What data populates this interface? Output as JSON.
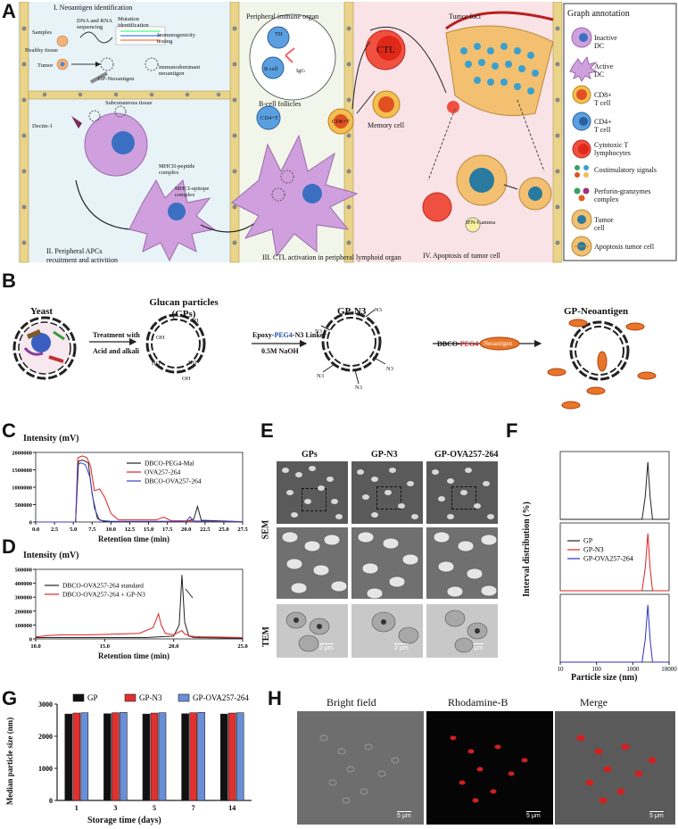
{
  "panel_letters": [
    "A",
    "B",
    "C",
    "D",
    "E",
    "F",
    "G",
    "H"
  ],
  "panelA": {
    "section1": "I. Neoantigen identification",
    "section2_lines": [
      "II. Peripheral APCs",
      "recuitment and activition"
    ],
    "section3": "III. CTL activation in peripheral lymphoid organ",
    "section4": "IV. Apoptosis of  tumor cell",
    "peripheral_organ": "Peripheral immune organ",
    "tumor_foci": "Tumor foci",
    "subcutaneous": "Subcutaneous tissue",
    "labels": {
      "samples": "Samples",
      "healthy": "Healthy tissue",
      "tumor": "Tumor",
      "seq": "DNA and RNA sequencing",
      "mutation": "Mutation identification",
      "immuno": "Immunogenicity testing",
      "immunodominant": "immunodominant neoantigen",
      "gp_neo": "GP-Neoantigen",
      "dectin": "Dectin-1",
      "mhcii": "MHCII-peptide complex",
      "mhci": "MHCI-epitope complex",
      "bcell": "B-cell follicles",
      "bcell_inner": "B cell",
      "th": "TH",
      "igg": "IgG",
      "cd4": "CD4+T",
      "cd8": "CD8+T",
      "ctl": "CTL",
      "memory": "Memory cell",
      "ifn": "IFN-Gamma"
    },
    "legend_title": "Graph annotation",
    "legend": [
      {
        "label": "Inactive DC",
        "icon": "inactive-dc-icon"
      },
      {
        "label": "Active DC",
        "icon": "active-dc-icon"
      },
      {
        "label": "CD8+ T cell",
        "icon": "cd8-cell-icon"
      },
      {
        "label": "CD4+ T cell",
        "icon": "cd4-cell-icon"
      },
      {
        "label": "Cytotoxic T lymphocytes",
        "icon": "ctl-icon"
      },
      {
        "label": "Costimulatory signals",
        "icon": "costim-icon"
      },
      {
        "label": "Perforin-granzymes complex",
        "icon": "perforin-icon"
      },
      {
        "label": "Tumor cell",
        "icon": "tumor-cell-icon"
      },
      {
        "label": "Apoptosis tumor cell",
        "icon": "apoptosis-icon"
      }
    ]
  },
  "panelB": {
    "yeast": "Yeast",
    "glucan_title": [
      "Glucan particles",
      "(GPs)"
    ],
    "gpn3_title": "GP-N3",
    "gpneo_title": "GP-Neoantigen",
    "step1": [
      "Treatment with",
      "Acid and alkali"
    ],
    "step2_a": "Epoxy-",
    "step2_peg": "PEG4",
    "step2_b": "-N3 Linker",
    "step2_c": "0.5M NaOH",
    "step3_a": "DBCO-",
    "step3_peg": "PEG4",
    "step3_neo": "Neoantigen",
    "oh": "OH",
    "ho": "HO",
    "n3": "N3",
    "neo_small": "Neoantigen"
  },
  "panelC": {
    "ylabel": "Intensity (mV)",
    "xlabel": "Retention time (min)"
  },
  "panelD": {
    "ylabel": "Intensity (mV)",
    "xlabel": "Retention time (min)"
  },
  "panelE": {
    "cols": [
      "GPs",
      "GP-N3",
      "GP-OVA257-264"
    ],
    "rows": [
      "SEM",
      "TEM"
    ],
    "scale": "2 μm"
  },
  "panelF": {
    "ylabel": "Interval distribution (%)",
    "xlabel": "Particle size (nm)"
  },
  "panelG": {
    "ylabel": "Median particle size (nm)",
    "xlabel": "Storage time (days)"
  },
  "panelH": {
    "cols": [
      "Bright field",
      "Rhodamine-B",
      "Merge"
    ],
    "scale": "5 μm"
  },
  "chart_data": [
    {
      "type": "line",
      "id": "C",
      "ylabel": "Intensity (mV)",
      "xlabel": "Retention time (min)",
      "xlim": [
        0.0,
        27.5
      ],
      "ylim": [
        0,
        2000000
      ],
      "xticks": [
        0.0,
        2.5,
        5.0,
        7.5,
        10.0,
        12.5,
        15.0,
        17.5,
        20.0,
        22.5,
        25.0,
        27.5
      ],
      "yticks": [
        0,
        500000,
        1000000,
        1500000,
        2000000
      ],
      "series": [
        {
          "name": "DBCO-PEG4-Mal",
          "color": "#222222",
          "x": [
            0,
            5.3,
            5.7,
            6.2,
            7.0,
            7.5,
            8.2,
            9.0,
            10,
            20,
            21,
            21.5,
            22,
            27.5
          ],
          "y": [
            0,
            0,
            1750000,
            1780000,
            1700000,
            800000,
            100000,
            20000,
            10000,
            20000,
            80000,
            450000,
            50000,
            10000
          ]
        },
        {
          "name": "OVA257-264",
          "color": "#e02020",
          "x": [
            0,
            5.3,
            5.6,
            6.2,
            6.8,
            7.3,
            7.8,
            8.5,
            9.2,
            10,
            11,
            16,
            17,
            18,
            27.5
          ],
          "y": [
            0,
            0,
            1850000,
            1900000,
            1850000,
            1600000,
            900000,
            950000,
            700000,
            250000,
            60000,
            60000,
            140000,
            40000,
            10000
          ]
        },
        {
          "name": "DBCO-OVA257-264",
          "color": "#4040c0",
          "x": [
            0,
            5.3,
            5.6,
            6.0,
            6.6,
            7.2,
            7.8,
            8.5,
            10,
            20,
            20.5,
            21,
            27.5
          ],
          "y": [
            0,
            0,
            1650000,
            1700000,
            1650000,
            1300000,
            400000,
            50000,
            20000,
            20000,
            150000,
            30000,
            10000
          ]
        }
      ]
    },
    {
      "type": "line",
      "id": "D",
      "ylabel": "Intensity (mV)",
      "xlabel": "Retention time (min)",
      "xlim": [
        10.0,
        25.0
      ],
      "ylim": [
        0,
        500000
      ],
      "xticks": [
        10.0,
        15.0,
        20.0,
        25.0
      ],
      "yticks": [
        0,
        100000,
        200000,
        300000,
        400000,
        500000
      ],
      "series": [
        {
          "name": "DBCO-OVA257-264 standard",
          "color": "#222222",
          "x": [
            10,
            18,
            19,
            20,
            20.4,
            20.6,
            20.8,
            21.1,
            21.5,
            25
          ],
          "y": [
            10000,
            10000,
            15000,
            20000,
            100000,
            460000,
            120000,
            20000,
            10000,
            5000
          ]
        },
        {
          "name": "DBCO-OVA257-264 + GP-N3",
          "color": "#e02020",
          "x": [
            10,
            11,
            12,
            14,
            16,
            17.5,
            18.5,
            18.9,
            19.1,
            19.4,
            20,
            20.6,
            20.8,
            21.2,
            22,
            25
          ],
          "y": [
            15000,
            25000,
            30000,
            30000,
            35000,
            40000,
            80000,
            180000,
            100000,
            40000,
            30000,
            60000,
            35000,
            20000,
            15000,
            10000
          ]
        }
      ]
    },
    {
      "type": "line",
      "id": "F",
      "xscale": "log",
      "xlim": [
        10,
        10000
      ],
      "xticks": [
        10,
        100,
        1000,
        10000
      ],
      "ylabel": "Interval distribution (%)",
      "xlabel": "Particle size (nm)",
      "series": [
        {
          "name": "GP",
          "color": "#222222",
          "x": [
            10,
            1800,
            2200,
            2600,
            3000,
            3500,
            10000
          ],
          "y": [
            0,
            0,
            15,
            38,
            15,
            0,
            0
          ]
        },
        {
          "name": "GP-N3",
          "color": "#e02020",
          "x": [
            10,
            1800,
            2200,
            2600,
            3000,
            3500,
            10000
          ],
          "y": [
            0,
            0,
            15,
            38,
            15,
            0,
            0
          ]
        },
        {
          "name": "GP-OVA257-264",
          "color": "#3030c0",
          "x": [
            10,
            1800,
            2200,
            2600,
            3000,
            3500,
            10000
          ],
          "y": [
            0,
            0,
            15,
            38,
            15,
            0,
            0
          ]
        }
      ]
    },
    {
      "type": "bar",
      "id": "G",
      "ylabel": "Median particle size (nm)",
      "xlabel": "Storage time (days)",
      "categories": [
        "1",
        "3",
        "5",
        "7",
        "14"
      ],
      "ylim": [
        0,
        3000
      ],
      "yticks": [
        0,
        1000,
        2000,
        3000
      ],
      "legend": "top",
      "series": [
        {
          "name": "GP",
          "color": "#111111",
          "values": [
            2690,
            2700,
            2690,
            2700,
            2690
          ]
        },
        {
          "name": "GP-N3",
          "color": "#e03030",
          "values": [
            2720,
            2730,
            2720,
            2730,
            2720
          ]
        },
        {
          "name": "GP-OVA257-264",
          "color": "#6a8ed8",
          "values": [
            2730,
            2740,
            2730,
            2740,
            2730
          ]
        }
      ]
    }
  ]
}
